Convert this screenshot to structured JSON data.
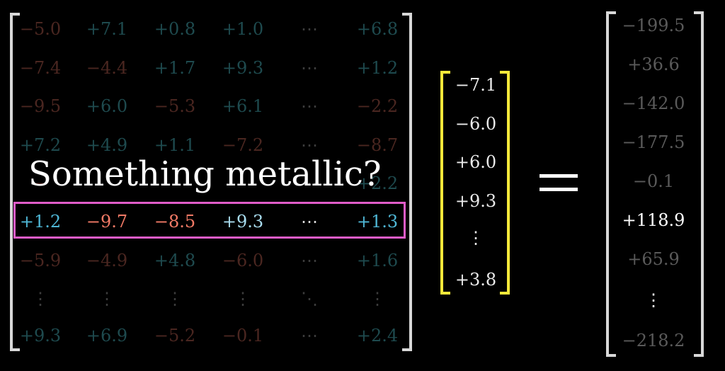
{
  "caption": "Something metallic?",
  "matrix_rows": [
    [
      "−5.0",
      "+7.1",
      "+0.8",
      "+1.0",
      "⋯",
      "+6.8"
    ],
    [
      "−7.4",
      "−4.4",
      "+1.7",
      "+9.3",
      "⋯",
      "+1.2"
    ],
    [
      "−9.5",
      "+6.0",
      "−5.3",
      "+6.1",
      "⋯",
      "−2.2"
    ],
    [
      "+7.2",
      "+4.9",
      "+1.1",
      "−7.2",
      "⋯",
      "−8.7"
    ],
    [
      "−",
      "",
      "",
      "",
      "⋯",
      "+2.2"
    ],
    [
      "+1.2",
      "−9.7",
      "−8.5",
      "+9.3",
      "⋯",
      "+1.3"
    ],
    [
      "−5.9",
      "−4.9",
      "+4.8",
      "−6.0",
      "⋯",
      "+1.6"
    ],
    [
      "⋮",
      "⋮",
      "⋮",
      "⋮",
      "⋱",
      "⋮"
    ],
    [
      "+9.3",
      "+6.9",
      "−5.2",
      "−0.1",
      "⋯",
      "+2.4"
    ]
  ],
  "vector": [
    "−7.1",
    "−6.0",
    "+6.0",
    "+9.3",
    "⋮",
    "+3.8"
  ],
  "result": [
    "−199.5",
    "+36.6",
    "−142.0",
    "−177.5",
    "−0.1",
    "+118.9",
    "+65.9",
    "⋮",
    "−218.2"
  ],
  "colors": {
    "matrix_bracket": "#d8d8d8",
    "vector_bracket": "#f5e83a",
    "result_bracket": "#d8d8d8",
    "highlight_border": "#e05cc8"
  }
}
